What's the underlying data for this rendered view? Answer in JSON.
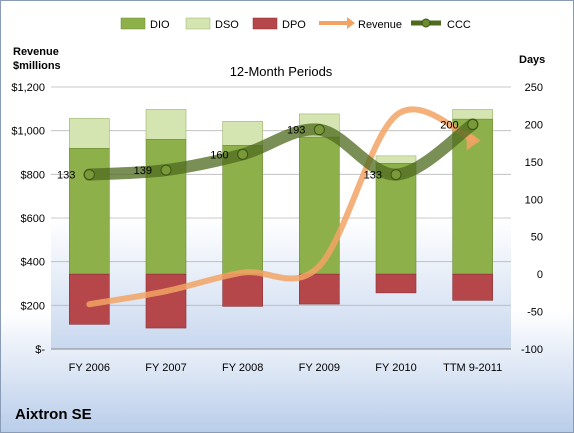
{
  "company": "Aixtron SE",
  "chart_data": {
    "type": "bar",
    "title": "12-Month Periods",
    "left_axis_label_line1": "Revenue",
    "left_axis_label_line2": "$millions",
    "right_axis_label": "Days",
    "categories": [
      "FY 2006",
      "FY 2007",
      "FY 2008",
      "FY 2009",
      "FY 2010",
      "TTM 9-2011"
    ],
    "left_ylim": [
      0,
      1200
    ],
    "left_ticks": [
      0,
      200,
      400,
      600,
      800,
      1000,
      1200
    ],
    "left_tick_labels": [
      "$-",
      "$200",
      "$400",
      "$600",
      "$800",
      "$1,000",
      "$1,200"
    ],
    "right_ylim": [
      -100,
      250
    ],
    "right_ticks": [
      -100,
      -50,
      0,
      50,
      100,
      150,
      200,
      250
    ],
    "right_tick_labels": [
      "-100",
      "-50",
      "0",
      "50",
      "100",
      "150",
      "200",
      "250"
    ],
    "legend_position": "top",
    "series": [
      {
        "name": "DIO",
        "axis": "right",
        "kind": "stacked-bar",
        "color": "#8db04a",
        "values": [
          168,
          180,
          172,
          183,
          148,
          207
        ]
      },
      {
        "name": "DSO",
        "axis": "right",
        "kind": "stacked-bar",
        "color": "#d5e5b1",
        "values": [
          40,
          40,
          32,
          31,
          10,
          13
        ]
      },
      {
        "name": "DPO",
        "axis": "right",
        "kind": "stacked-bar-negative",
        "color": "#b5474b",
        "values": [
          -67,
          -72,
          -43,
          -40,
          -25,
          -35
        ]
      },
      {
        "name": "Revenue",
        "axis": "left",
        "kind": "line",
        "color": "#f2a364",
        "values": [
          205,
          265,
          350,
          380,
          1070,
          960
        ]
      },
      {
        "name": "CCC",
        "axis": "right",
        "kind": "line",
        "color": "#4d6a1e",
        "values": [
          133,
          139,
          160,
          193,
          133,
          200
        ]
      }
    ],
    "data_labels": [
      "133",
      "139",
      "160",
      "193",
      "133",
      "200"
    ]
  }
}
